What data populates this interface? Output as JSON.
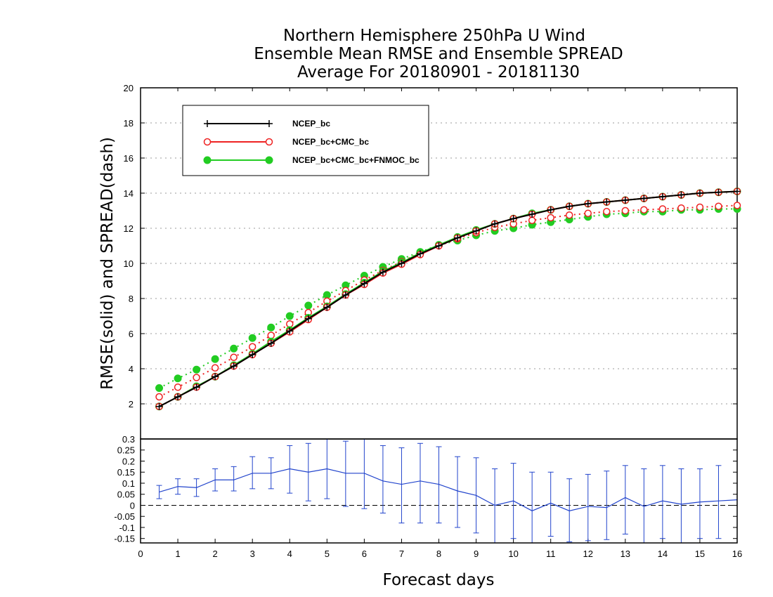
{
  "chart_data": [
    {
      "type": "line",
      "title": "Northern Hemisphere 250hPa U Wind",
      "subtitle": "Ensemble Mean RMSE and Ensemble SPREAD",
      "subtitle2": "Average For 20180901 - 20181130",
      "ylabel": "RMSE(solid) and SPREAD(dash)",
      "xlim": [
        0,
        16
      ],
      "ylim": [
        0,
        20
      ],
      "yticks": [
        2,
        4,
        6,
        8,
        10,
        12,
        14,
        16,
        18,
        20
      ],
      "grid": true,
      "legend_position": "top-left",
      "x": [
        0.5,
        1.0,
        1.5,
        2.0,
        2.5,
        3.0,
        3.5,
        4.0,
        4.5,
        5.0,
        5.5,
        6.0,
        6.5,
        7.0,
        7.5,
        8.0,
        8.5,
        9.0,
        9.5,
        10.0,
        10.5,
        11.0,
        11.5,
        12.0,
        12.5,
        13.0,
        13.5,
        14.0,
        14.5,
        15.0,
        15.5,
        16.0
      ],
      "series": [
        {
          "name": "NCEP_bc",
          "color": "#000000",
          "marker": "plus",
          "rmse": [
            1.85,
            2.4,
            2.95,
            3.55,
            4.15,
            4.8,
            5.45,
            6.15,
            6.85,
            7.5,
            8.2,
            8.85,
            9.5,
            10.0,
            10.55,
            11.0,
            11.45,
            11.85,
            12.25,
            12.55,
            12.8,
            13.05,
            13.25,
            13.4,
            13.5,
            13.6,
            13.7,
            13.8,
            13.9,
            14.0,
            14.05,
            14.1
          ],
          "spread": []
        },
        {
          "name": "NCEP_bc+CMC_bc",
          "color": "#ee2222",
          "marker": "open-circle",
          "rmse": [
            1.85,
            2.4,
            2.95,
            3.55,
            4.15,
            4.8,
            5.45,
            6.1,
            6.8,
            7.5,
            8.2,
            8.8,
            9.45,
            9.95,
            10.5,
            11.0,
            11.45,
            11.85,
            12.25,
            12.55,
            12.8,
            13.05,
            13.25,
            13.4,
            13.5,
            13.6,
            13.7,
            13.8,
            13.9,
            14.0,
            14.05,
            14.1
          ],
          "spread": [
            2.4,
            2.95,
            3.5,
            4.05,
            4.65,
            5.25,
            5.9,
            6.55,
            7.2,
            7.85,
            8.45,
            9.05,
            9.6,
            10.1,
            10.6,
            11.0,
            11.4,
            11.75,
            12.05,
            12.25,
            12.45,
            12.6,
            12.75,
            12.85,
            12.95,
            13.0,
            13.05,
            13.1,
            13.15,
            13.2,
            13.25,
            13.3
          ]
        },
        {
          "name": "NCEP_bc+CMC_bc+FNMOC_bc",
          "color": "#22cc22",
          "marker": "filled-circle",
          "rmse": [
            1.85,
            2.4,
            3.0,
            3.55,
            4.2,
            4.85,
            5.55,
            6.2,
            6.9,
            7.55,
            8.25,
            8.9,
            9.55,
            10.05,
            10.6,
            11.05,
            11.5,
            11.9,
            12.25,
            12.55,
            12.85,
            13.05,
            13.25,
            13.4,
            13.5,
            13.6,
            13.7,
            13.8,
            13.9,
            14.0,
            14.05,
            14.1
          ],
          "spread": [
            2.9,
            3.45,
            3.95,
            4.55,
            5.15,
            5.75,
            6.35,
            7.0,
            7.6,
            8.2,
            8.75,
            9.3,
            9.8,
            10.25,
            10.65,
            11.05,
            11.3,
            11.6,
            11.85,
            12.0,
            12.2,
            12.35,
            12.5,
            12.65,
            12.8,
            12.85,
            12.95,
            12.95,
            13.05,
            13.05,
            13.1,
            13.1
          ]
        }
      ]
    },
    {
      "type": "line",
      "xlabel": "Forecast days",
      "xlim": [
        0,
        16
      ],
      "xticks": [
        0,
        1,
        2,
        3,
        4,
        5,
        6,
        7,
        8,
        9,
        10,
        11,
        12,
        13,
        14,
        15,
        16
      ],
      "ylim": [
        -0.17,
        0.3
      ],
      "yticks": [
        -0.15,
        -0.1,
        -0.05,
        0,
        0.05,
        0.1,
        0.15,
        0.2,
        0.25,
        0.3
      ],
      "ytick_labels": [
        "-0.15",
        "-0.1",
        "-0.05",
        "0",
        "0.05",
        "0.1",
        "0.15",
        "0.2",
        "0.25",
        "0.3"
      ],
      "zero_line": "dashed",
      "color": "#2244cc",
      "x": [
        0.5,
        1.0,
        1.5,
        2.0,
        2.5,
        3.0,
        3.5,
        4.0,
        4.5,
        5.0,
        5.5,
        6.0,
        6.5,
        7.0,
        7.5,
        8.0,
        8.5,
        9.0,
        9.5,
        10.0,
        10.5,
        11.0,
        11.5,
        12.0,
        12.5,
        13.0,
        13.5,
        14.0,
        14.5,
        15.0,
        15.5,
        16.0
      ],
      "values": [
        0.06,
        0.085,
        0.08,
        0.115,
        0.115,
        0.145,
        0.145,
        0.165,
        0.15,
        0.165,
        0.145,
        0.145,
        0.11,
        0.095,
        0.11,
        0.095,
        0.065,
        0.045,
        0.0,
        0.02,
        -0.025,
        0.01,
        -0.025,
        -0.005,
        -0.01,
        0.035,
        -0.005,
        0.02,
        0.005,
        0.015,
        0.02,
        0.025
      ],
      "error_low": [
        0.03,
        0.05,
        0.04,
        0.065,
        0.065,
        0.075,
        0.075,
        0.055,
        0.02,
        0.03,
        -0.005,
        -0.015,
        -0.035,
        -0.08,
        -0.08,
        -0.08,
        -0.1,
        -0.125,
        -0.17,
        -0.15,
        -0.17,
        -0.14,
        -0.165,
        -0.16,
        -0.155,
        -0.13,
        -0.17,
        -0.15,
        -0.17,
        -0.15,
        -0.15,
        -0.17
      ],
      "error_high": [
        0.09,
        0.12,
        0.12,
        0.165,
        0.175,
        0.22,
        0.215,
        0.27,
        0.28,
        0.3,
        0.29,
        0.3,
        0.27,
        0.26,
        0.28,
        0.265,
        0.22,
        0.215,
        0.165,
        0.19,
        0.15,
        0.15,
        0.12,
        0.14,
        0.155,
        0.18,
        0.165,
        0.18,
        0.165,
        0.165,
        0.18,
        0.3
      ]
    }
  ]
}
